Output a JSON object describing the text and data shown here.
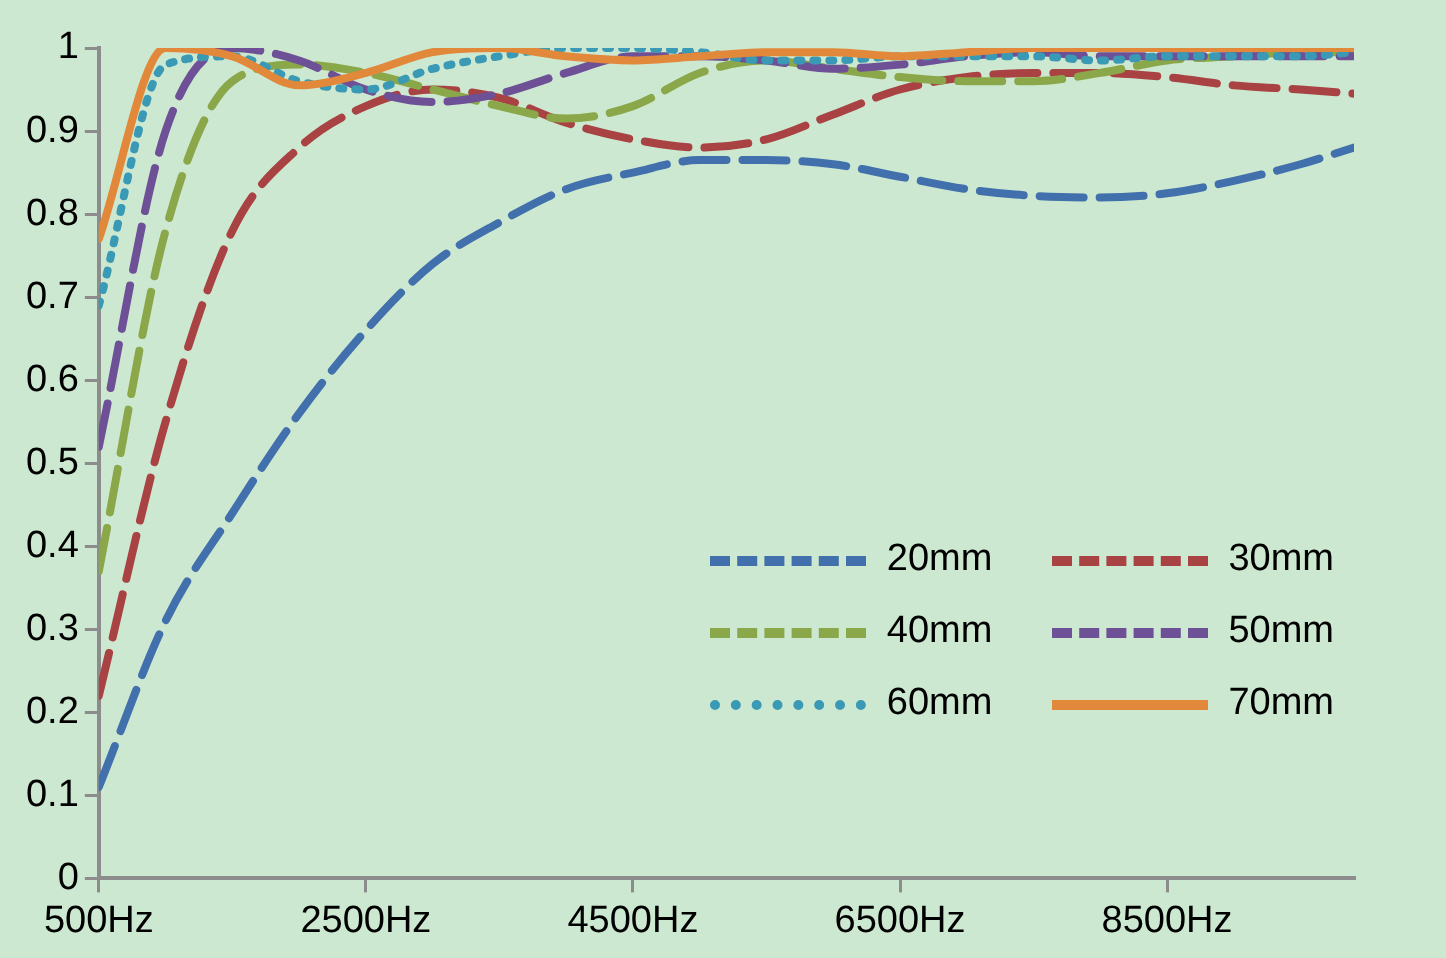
{
  "chart_data": {
    "type": "line",
    "x": [
      500,
      1000,
      1500,
      2000,
      2500,
      3000,
      3500,
      4000,
      4500,
      5000,
      5500,
      6000,
      6500,
      7000,
      7500,
      8000,
      8500,
      9000,
      9500,
      9900
    ],
    "series": [
      {
        "name": "20mm",
        "color": "#4270ad",
        "line_style": "dashed",
        "values": [
          0.11,
          0.31,
          0.44,
          0.56,
          0.66,
          0.74,
          0.79,
          0.83,
          0.85,
          0.865,
          0.865,
          0.86,
          0.845,
          0.83,
          0.822,
          0.82,
          0.825,
          0.84,
          0.86,
          0.88
        ]
      },
      {
        "name": "30mm",
        "color": "#a94242",
        "line_style": "dashed",
        "values": [
          0.22,
          0.55,
          0.78,
          0.88,
          0.93,
          0.95,
          0.94,
          0.91,
          0.89,
          0.88,
          0.89,
          0.92,
          0.95,
          0.965,
          0.97,
          0.97,
          0.965,
          0.955,
          0.95,
          0.945
        ]
      },
      {
        "name": "40mm",
        "color": "#8aa84a",
        "line_style": "dashed",
        "values": [
          0.37,
          0.78,
          0.96,
          0.98,
          0.97,
          0.95,
          0.93,
          0.915,
          0.93,
          0.97,
          0.985,
          0.975,
          0.965,
          0.96,
          0.96,
          0.97,
          0.985,
          0.99,
          0.995,
          0.995
        ]
      },
      {
        "name": "50mm",
        "color": "#6e5096",
        "line_style": "dashed",
        "values": [
          0.52,
          0.9,
          1,
          0.985,
          0.95,
          0.935,
          0.945,
          0.97,
          0.99,
          0.99,
          0.985,
          0.975,
          0.98,
          0.99,
          0.995,
          0.99,
          0.99,
          0.99,
          0.99,
          0.99
        ]
      },
      {
        "name": "60mm",
        "color": "#3a9ab5",
        "line_style": "dotted",
        "values": [
          0.69,
          0.98,
          0.99,
          0.96,
          0.95,
          0.975,
          0.99,
          1,
          1,
          0.995,
          0.985,
          0.985,
          0.99,
          0.99,
          0.99,
          0.985,
          0.99,
          0.99,
          0.99,
          0.995
        ]
      },
      {
        "name": "70mm",
        "color": "#e2883a",
        "line_style": "solid",
        "values": [
          0.77,
          1,
          0.99,
          0.955,
          0.97,
          0.995,
          1,
          0.99,
          0.985,
          0.99,
          0.995,
          0.995,
          0.99,
          0.995,
          1,
          1,
          1,
          1,
          1,
          1
        ]
      }
    ],
    "xlim": [
      500,
      9900
    ],
    "xticks": [
      {
        "value": 500,
        "label": "500Hz"
      },
      {
        "value": 2500,
        "label": "2500Hz"
      },
      {
        "value": 4500,
        "label": "4500Hz"
      },
      {
        "value": 6500,
        "label": "6500Hz"
      },
      {
        "value": 8500,
        "label": "8500Hz"
      }
    ],
    "ylim": [
      0,
      1
    ],
    "yticks": [
      0,
      {
        "value": 0.1,
        "label": "0.1"
      },
      {
        "value": 0.2,
        "label": "0.2"
      },
      {
        "value": 0.3,
        "label": "0.3"
      },
      {
        "value": 0.4,
        "label": "0.4"
      },
      {
        "value": 0.5,
        "label": "0.5"
      },
      {
        "value": 0.6,
        "label": "0.6"
      },
      {
        "value": 0.7,
        "label": "0.7"
      },
      {
        "value": 0.8,
        "label": "0.8"
      },
      {
        "value": 0.9,
        "label": "0.9"
      },
      1
    ],
    "grid": false,
    "legend": "bottom right"
  }
}
